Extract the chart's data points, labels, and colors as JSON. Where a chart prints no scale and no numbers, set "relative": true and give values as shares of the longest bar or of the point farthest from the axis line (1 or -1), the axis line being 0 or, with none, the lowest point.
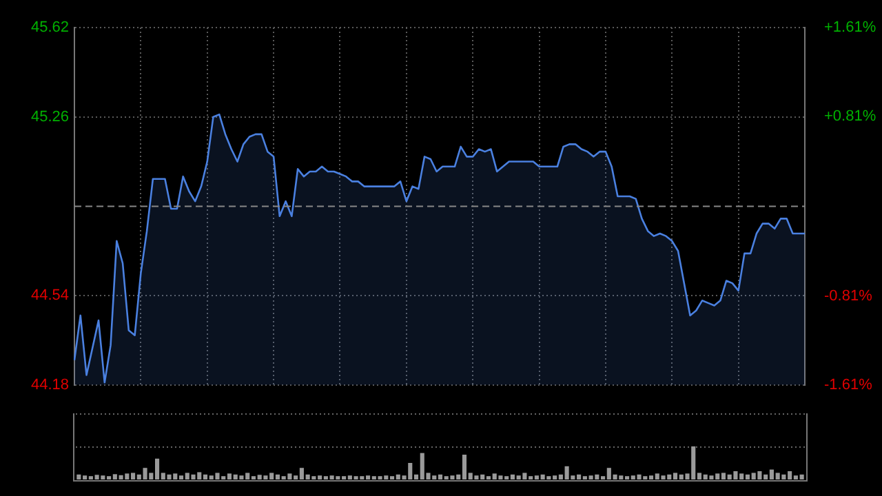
{
  "chart_data": [
    {
      "type": "area",
      "categories": [
        null,
        null,
        null,
        null,
        null,
        null,
        null,
        null,
        null,
        null,
        null,
        null,
        null,
        null,
        null,
        null,
        null,
        null,
        null,
        null,
        null,
        null,
        null,
        null,
        null,
        null,
        null,
        null,
        null,
        null,
        null,
        null,
        null,
        null,
        null,
        null,
        null,
        null,
        null,
        null,
        null,
        null,
        null,
        null,
        null,
        null,
        null,
        null,
        null,
        null,
        null,
        null,
        null,
        null,
        null,
        null,
        null,
        null,
        null,
        null,
        null,
        null,
        null,
        null,
        null,
        null,
        null,
        null,
        null,
        null,
        null,
        null,
        null,
        null,
        null,
        null,
        null,
        null,
        null,
        null,
        null,
        null,
        null,
        null,
        null,
        null,
        null,
        null,
        null,
        null,
        null,
        null,
        null,
        null,
        null,
        null,
        null,
        null,
        null,
        null,
        null,
        null,
        null,
        null,
        null,
        null,
        null,
        null,
        null,
        null,
        null,
        null,
        null,
        null,
        null,
        null,
        null,
        null,
        null,
        null,
        null,
        null
      ],
      "ylim": [
        44.18,
        45.62
      ],
      "yticks": [
        44.18,
        44.54,
        45.26,
        45.62
      ],
      "y2lim": [
        -1.61,
        1.61
      ],
      "y2ticks": [
        {
          "value": -1.61,
          "label": "-1.61%"
        },
        {
          "value": -0.81,
          "label": "-0.81%"
        },
        {
          "value": 0.81,
          "label": "+0.81%"
        },
        {
          "value": 1.61,
          "label": "+1.61%"
        }
      ],
      "tick_labels": "y",
      "grid": true,
      "marker": "none",
      "ref_lines": [
        {
          "axis": "y",
          "value": 44.9,
          "color": "#888888",
          "line_style": "dashed"
        }
      ],
      "series": [
        {
          "color": "#4a80e0",
          "values": [
            44.28,
            44.46,
            44.22,
            44.33,
            44.44,
            44.19,
            44.34,
            44.76,
            44.67,
            44.4,
            44.38,
            44.63,
            44.8,
            45.01,
            45.01,
            45.01,
            44.89,
            44.89,
            45.02,
            44.96,
            44.92,
            44.98,
            45.08,
            45.26,
            45.27,
            45.19,
            45.13,
            45.08,
            45.15,
            45.18,
            45.19,
            45.19,
            45.12,
            45.1,
            44.86,
            44.92,
            44.86,
            45.05,
            45.02,
            45.04,
            45.04,
            45.06,
            45.04,
            45.04,
            45.03,
            45.02,
            45.0,
            45.0,
            44.98,
            44.98,
            44.98,
            44.98,
            44.98,
            44.98,
            45.0,
            44.92,
            44.98,
            44.97,
            45.1,
            45.09,
            45.04,
            45.06,
            45.06,
            45.06,
            45.14,
            45.1,
            45.1,
            45.13,
            45.12,
            45.13,
            45.04,
            45.06,
            45.08,
            45.08,
            45.08,
            45.08,
            45.08,
            45.06,
            45.06,
            45.06,
            45.06,
            45.14,
            45.15,
            45.15,
            45.13,
            45.12,
            45.1,
            45.12,
            45.12,
            45.06,
            44.94,
            44.94,
            44.94,
            44.93,
            44.85,
            44.8,
            44.78,
            44.79,
            44.78,
            44.76,
            44.72,
            44.59,
            44.46,
            44.48,
            44.52,
            44.51,
            44.5,
            44.52,
            44.6,
            44.59,
            44.56,
            44.71,
            44.71,
            44.79,
            44.83,
            44.83,
            44.81,
            44.85,
            44.85,
            44.79,
            44.79,
            44.79
          ]
        }
      ]
    },
    {
      "type": "bar",
      "relative": true,
      "color": "#9a9a9a",
      "categories": [
        null,
        null,
        null,
        null,
        null,
        null,
        null,
        null,
        null,
        null,
        null,
        null,
        null,
        null,
        null,
        null,
        null,
        null,
        null,
        null,
        null,
        null,
        null,
        null,
        null,
        null,
        null,
        null,
        null,
        null,
        null,
        null,
        null,
        null,
        null,
        null,
        null,
        null,
        null,
        null,
        null,
        null,
        null,
        null,
        null,
        null,
        null,
        null,
        null,
        null,
        null,
        null,
        null,
        null,
        null,
        null,
        null,
        null,
        null,
        null,
        null,
        null,
        null,
        null,
        null,
        null,
        null,
        null,
        null,
        null,
        null,
        null,
        null,
        null,
        null,
        null,
        null,
        null,
        null,
        null,
        null,
        null,
        null,
        null,
        null,
        null,
        null,
        null,
        null,
        null,
        null,
        null,
        null,
        null,
        null,
        null,
        null,
        null,
        null,
        null,
        null,
        null,
        null,
        null,
        null,
        null,
        null,
        null,
        null,
        null,
        null,
        null,
        null,
        null,
        null,
        null,
        null,
        null,
        null,
        null,
        null
      ],
      "values": [
        0.15,
        0.12,
        0.1,
        0.14,
        0.12,
        0.1,
        0.16,
        0.13,
        0.18,
        0.2,
        0.15,
        0.35,
        0.2,
        0.63,
        0.2,
        0.15,
        0.18,
        0.12,
        0.2,
        0.15,
        0.22,
        0.15,
        0.12,
        0.2,
        0.1,
        0.18,
        0.15,
        0.12,
        0.2,
        0.1,
        0.14,
        0.12,
        0.2,
        0.15,
        0.1,
        0.18,
        0.12,
        0.35,
        0.15,
        0.1,
        0.12,
        0.1,
        0.12,
        0.1,
        0.1,
        0.12,
        0.1,
        0.1,
        0.12,
        0.1,
        0.1,
        0.12,
        0.1,
        0.15,
        0.12,
        0.5,
        0.15,
        0.8,
        0.2,
        0.12,
        0.15,
        0.1,
        0.12,
        0.15,
        0.75,
        0.2,
        0.12,
        0.15,
        0.1,
        0.18,
        0.12,
        0.1,
        0.15,
        0.12,
        0.2,
        0.1,
        0.12,
        0.15,
        0.1,
        0.12,
        0.15,
        0.4,
        0.12,
        0.15,
        0.1,
        0.12,
        0.15,
        0.1,
        0.35,
        0.15,
        0.12,
        0.1,
        0.12,
        0.15,
        0.1,
        0.12,
        0.18,
        0.12,
        0.15,
        0.2,
        0.15,
        0.18,
        1,
        0.2,
        0.15,
        0.12,
        0.18,
        0.2,
        0.15,
        0.25,
        0.18,
        0.15,
        0.2,
        0.25,
        0.15,
        0.3,
        0.2,
        0.15,
        0.25,
        0.12,
        0.15
      ]
    }
  ]
}
